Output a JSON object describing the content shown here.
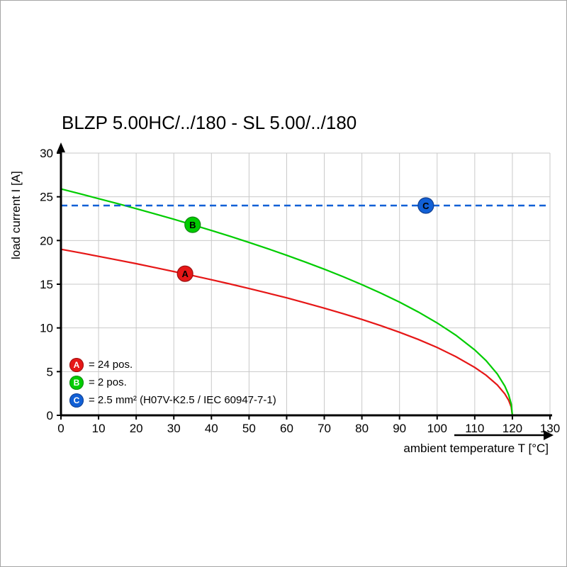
{
  "chart_data": {
    "type": "line",
    "title": "BLZP 5.00HC/../180 - SL 5.00/../180",
    "xlabel": "ambient temperature T [°C]",
    "ylabel": "load current I [A]",
    "xlim": [
      0,
      130
    ],
    "ylim": [
      0,
      30
    ],
    "x_ticks": [
      0,
      10,
      20,
      30,
      40,
      50,
      60,
      70,
      80,
      90,
      100,
      110,
      120,
      130
    ],
    "y_ticks": [
      0,
      5,
      10,
      15,
      20,
      25,
      30
    ],
    "grid": true,
    "grid_color": "#c9c9c9",
    "axis_color": "#000000",
    "legend_position": "bottom-left-inside",
    "series": [
      {
        "name": "A",
        "label": "= 24 pos.",
        "color": "#e61717",
        "edge": "#991111",
        "style": "solid",
        "marker": {
          "x": 33,
          "y": 16.2
        },
        "points": [
          [
            0,
            19.0
          ],
          [
            5,
            18.6
          ],
          [
            10,
            18.19
          ],
          [
            15,
            17.77
          ],
          [
            20,
            17.35
          ],
          [
            25,
            16.9
          ],
          [
            30,
            16.45
          ],
          [
            35,
            15.99
          ],
          [
            40,
            15.51
          ],
          [
            45,
            15.02
          ],
          [
            50,
            14.51
          ],
          [
            55,
            13.98
          ],
          [
            60,
            13.44
          ],
          [
            65,
            12.86
          ],
          [
            70,
            12.26
          ],
          [
            75,
            11.63
          ],
          [
            80,
            10.97
          ],
          [
            85,
            10.26
          ],
          [
            90,
            9.5
          ],
          [
            95,
            8.68
          ],
          [
            100,
            7.76
          ],
          [
            105,
            6.71
          ],
          [
            110,
            5.48
          ],
          [
            113,
            4.59
          ],
          [
            116,
            3.47
          ],
          [
            118,
            2.45
          ],
          [
            119,
            1.73
          ],
          [
            119.7,
            0.95
          ],
          [
            120,
            0
          ]
        ]
      },
      {
        "name": "B",
        "label": "= 2 pos.",
        "color": "#00cc00",
        "edge": "#118811",
        "style": "solid",
        "marker": {
          "x": 35,
          "y": 21.8
        },
        "points": [
          [
            0,
            25.9
          ],
          [
            5,
            25.35
          ],
          [
            10,
            24.79
          ],
          [
            15,
            24.23
          ],
          [
            20,
            23.64
          ],
          [
            25,
            23.04
          ],
          [
            30,
            22.43
          ],
          [
            35,
            21.8
          ],
          [
            40,
            21.15
          ],
          [
            45,
            20.48
          ],
          [
            50,
            19.78
          ],
          [
            55,
            19.06
          ],
          [
            60,
            18.31
          ],
          [
            65,
            17.53
          ],
          [
            70,
            16.72
          ],
          [
            75,
            15.86
          ],
          [
            80,
            14.95
          ],
          [
            85,
            13.99
          ],
          [
            90,
            12.95
          ],
          [
            95,
            11.82
          ],
          [
            100,
            10.57
          ],
          [
            105,
            9.16
          ],
          [
            110,
            7.48
          ],
          [
            113,
            6.26
          ],
          [
            116,
            4.73
          ],
          [
            118,
            3.34
          ],
          [
            119,
            2.36
          ],
          [
            119.7,
            1.29
          ],
          [
            120,
            0
          ]
        ]
      },
      {
        "name": "C",
        "label": "= 2.5 mm² (H07V-K2.5 / IEC 60947-7-1)",
        "color": "#1160d6",
        "edge": "#123f8f",
        "style": "dashed",
        "marker": {
          "x": 97,
          "y": 24
        },
        "points": [
          [
            0,
            24
          ],
          [
            130,
            24
          ]
        ]
      }
    ]
  }
}
